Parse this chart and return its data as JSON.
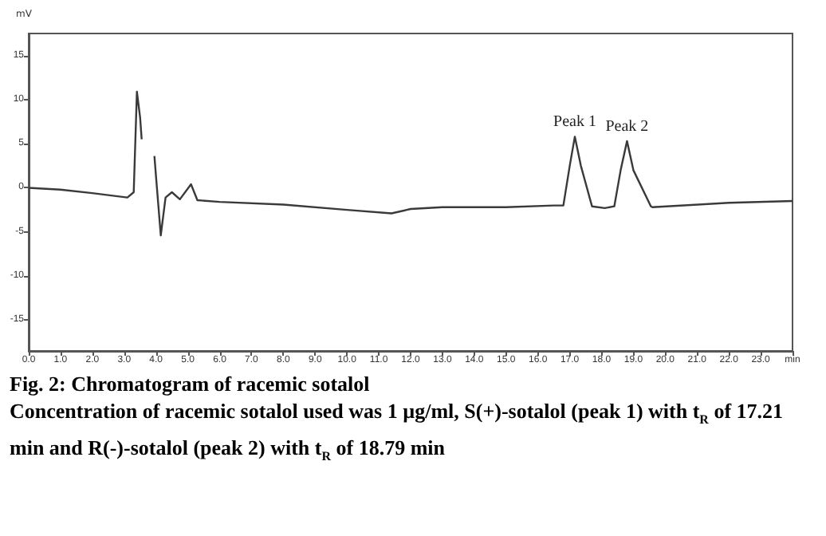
{
  "chart_data": {
    "type": "line",
    "title": "Fig. 2: Chromatogram of racemic sotalol",
    "ylabel": "mV",
    "annotations": [
      "Concentration of racemic sotalol used was 1 µg/ml, S(+)-sotalol (peak 1) with t$_{R}$ of 17.21 min and R(-)-sotalol (peak 2) with t$_{R}$ of 18.79 min",
      {
        "text": "Peak 1",
        "x": 17.16,
        "y": 5.8
      },
      {
        "text": "Peak 2",
        "x": 18.8,
        "y": 5.3
      }
    ],
    "x": [
      0,
      1,
      2,
      3.1,
      3.3,
      3.4,
      3.5,
      3.55,
      3.65,
      3.8,
      3.95,
      4.0,
      4.15,
      4.3,
      4.5,
      4.75,
      5.1,
      5.3,
      6,
      8,
      10,
      11.4,
      12,
      13,
      15,
      16.5,
      16.8,
      17.0,
      17.16,
      17.35,
      17.7,
      18.1,
      18.4,
      18.6,
      18.8,
      19.0,
      19.55,
      19.6,
      22,
      24
    ],
    "series": [
      {
        "color": "#3a3a3a",
        "values": [
          0,
          -0.2,
          -0.6,
          -1.1,
          -0.5,
          10.9,
          8,
          5.5,
          null,
          null,
          3.6,
          1.3,
          -5.4,
          -1.1,
          -0.5,
          -1.3,
          0.4,
          -1.4,
          -1.6,
          -1.9,
          -2.5,
          -2.9,
          -2.4,
          -2.2,
          -2.2,
          -2.0,
          -2.0,
          2.5,
          5.8,
          2.5,
          -2.1,
          -2.3,
          -2.1,
          2,
          5.3,
          2,
          -2.1,
          -2.2,
          -1.7,
          -1.5
        ]
      }
    ],
    "xlim": [
      0,
      24
    ],
    "xticks": [
      {
        "value": 0,
        "label": "0.0"
      },
      {
        "value": 1,
        "label": "1.0"
      },
      {
        "value": 2,
        "label": "2.0"
      },
      {
        "value": 3,
        "label": "3.0"
      },
      {
        "value": 4,
        "label": "4.0"
      },
      {
        "value": 5,
        "label": "5.0"
      },
      {
        "value": 6,
        "label": "6.0"
      },
      {
        "value": 7,
        "label": "7.0"
      },
      {
        "value": 8,
        "label": "8.0"
      },
      {
        "value": 9,
        "label": "9.0"
      },
      {
        "value": 10,
        "label": "10.0"
      },
      {
        "value": 11,
        "label": "11.0"
      },
      {
        "value": 12,
        "label": "12.0"
      },
      {
        "value": 13,
        "label": "13.0"
      },
      {
        "value": 14,
        "label": "14.0"
      },
      {
        "value": 15,
        "label": "15.0"
      },
      {
        "value": 16,
        "label": "16.0"
      },
      {
        "value": 17,
        "label": "17.0"
      },
      {
        "value": 18,
        "label": "18.0"
      },
      {
        "value": 19,
        "label": "19.0"
      },
      {
        "value": 20,
        "label": "20.0"
      },
      {
        "value": 21,
        "label": "21.0"
      },
      {
        "value": 22,
        "label": "22.0"
      },
      {
        "value": 23,
        "label": "23.0"
      },
      {
        "value": 24,
        "label": "min"
      }
    ],
    "ylim": [
      -18.5,
      17.5
    ],
    "yticks": [
      -15,
      -10,
      -5,
      0,
      5,
      10,
      15
    ],
    "grid": false,
    "marker": "none",
    "line_style": "solid"
  }
}
